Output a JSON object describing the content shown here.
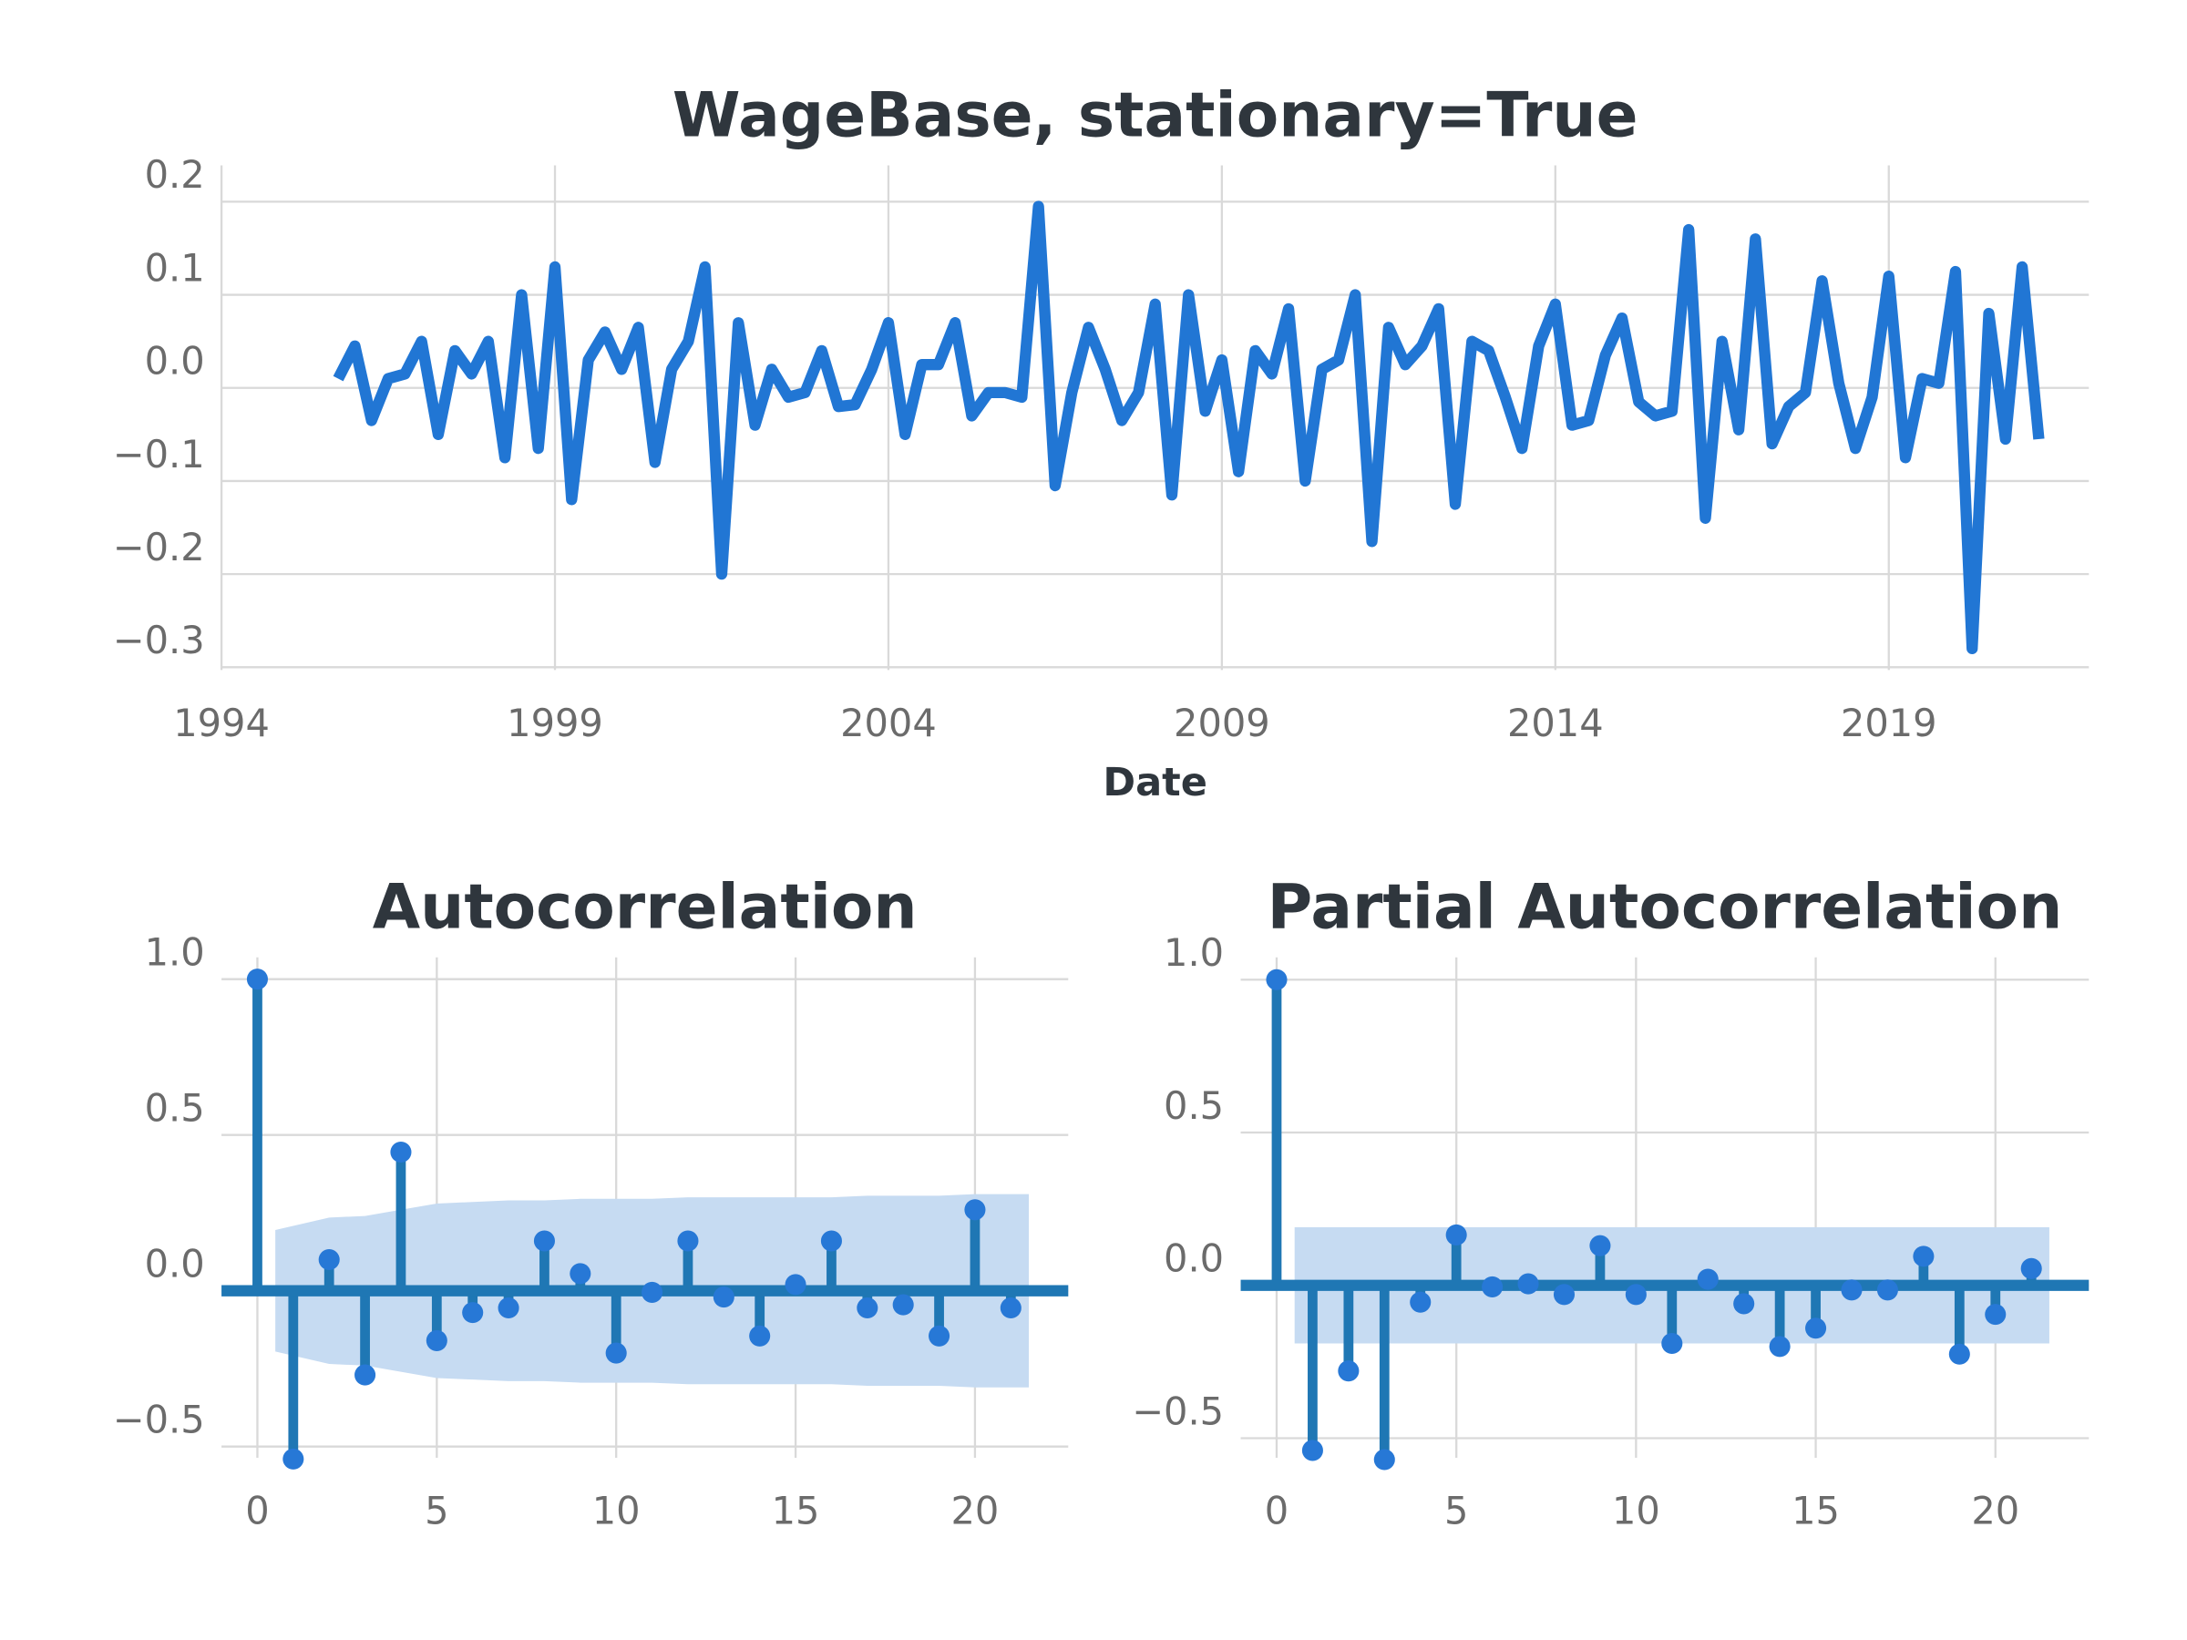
{
  "chart_data": [
    {
      "type": "line",
      "title": "WageBase, stationary=True",
      "xlabel": "Date",
      "x": [
        1995.75,
        1996,
        1996.25,
        1996.5,
        1996.75,
        1997,
        1997.25,
        1997.5,
        1997.75,
        1998,
        1998.25,
        1998.5,
        1998.75,
        1999,
        1999.25,
        1999.5,
        1999.75,
        2000,
        2000.25,
        2000.5,
        2000.75,
        2001,
        2001.25,
        2001.5,
        2001.75,
        2002,
        2002.25,
        2002.5,
        2002.75,
        2003,
        2003.25,
        2003.5,
        2003.75,
        2004,
        2004.25,
        2004.5,
        2004.75,
        2005,
        2005.25,
        2005.5,
        2005.75,
        2006,
        2006.25,
        2006.5,
        2006.75,
        2007,
        2007.25,
        2007.5,
        2007.75,
        2008,
        2008.25,
        2008.5,
        2008.75,
        2009,
        2009.25,
        2009.5,
        2009.75,
        2010,
        2010.25,
        2010.5,
        2010.75,
        2011,
        2011.25,
        2011.5,
        2011.75,
        2012,
        2012.25,
        2012.5,
        2012.75,
        2013,
        2013.25,
        2013.5,
        2013.75,
        2014,
        2014.25,
        2014.5,
        2014.75,
        2015,
        2015.25,
        2015.5,
        2015.75,
        2016,
        2016.25,
        2016.5,
        2016.75,
        2017,
        2017.25,
        2017.5,
        2017.75,
        2018,
        2018.25,
        2018.5,
        2018.75,
        2019,
        2019.25,
        2019.5,
        2019.75,
        2020,
        2020.25,
        2020.5,
        2020.75,
        2021,
        2021.25
      ],
      "values": [
        0.01,
        0.045,
        -0.035,
        0.01,
        0.015,
        0.05,
        -0.05,
        0.04,
        0.015,
        0.05,
        -0.075,
        0.1,
        -0.065,
        0.13,
        -0.12,
        0.03,
        0.06,
        0.02,
        0.065,
        -0.08,
        0.02,
        0.05,
        0.13,
        -0.2,
        0.07,
        -0.04,
        0.02,
        -0.01,
        -0.005,
        0.04,
        -0.02,
        -0.018,
        0.02,
        0.07,
        -0.05,
        0.025,
        0.025,
        0.07,
        -0.03,
        -0.005,
        -0.005,
        -0.01,
        0.195,
        -0.105,
        -0.005,
        0.065,
        0.02,
        -0.035,
        -0.005,
        0.09,
        -0.115,
        0.1,
        -0.025,
        0.03,
        -0.09,
        0.04,
        0.015,
        0.085,
        -0.1,
        0.02,
        0.03,
        0.1,
        -0.165,
        0.065,
        0.025,
        0.045,
        0.085,
        -0.125,
        0.05,
        0.04,
        -0.01,
        -0.065,
        0.045,
        0.09,
        -0.04,
        -0.035,
        0.035,
        0.075,
        -0.015,
        -0.03,
        -0.025,
        0.17,
        -0.14,
        0.05,
        -0.045,
        0.16,
        -0.06,
        -0.02,
        -0.005,
        0.115,
        0.005,
        -0.065,
        -0.01,
        0.12,
        -0.075,
        0.01,
        0.005,
        0.125,
        -0.28,
        0.08,
        -0.055,
        0.13,
        -0.055
      ],
      "color": "#2176d4",
      "xlim": [
        1994,
        2022
      ],
      "xticks": [
        1994,
        1999,
        2004,
        2009,
        2014,
        2019
      ],
      "ylim": [
        -0.303,
        0.239
      ],
      "yticks": [
        0.2,
        0.1,
        {
          "value": 0,
          "label": "0.0"
        },
        {
          "value": -0.1,
          "label": "−0.1"
        },
        {
          "value": -0.2,
          "label": "−0.2"
        },
        {
          "value": -0.3,
          "label": "−0.3"
        }
      ],
      "grid": true
    },
    {
      "type": "stem",
      "title": "Autocorrelation",
      "x": [
        0,
        1,
        2,
        3,
        4,
        5,
        6,
        7,
        8,
        9,
        10,
        11,
        12,
        13,
        14,
        15,
        16,
        17,
        18,
        19,
        20,
        21
      ],
      "values": [
        1,
        -0.54,
        0.1,
        -0.27,
        0.445,
        -0.16,
        -0.07,
        -0.055,
        0.16,
        0.055,
        -0.2,
        -0.005,
        0.16,
        -0.02,
        -0.145,
        0.02,
        0.16,
        -0.055,
        -0.045,
        -0.145,
        0.26,
        -0.055
      ],
      "band": [
        null,
        0.195,
        0.235,
        0.24,
        0.26,
        0.28,
        0.285,
        0.29,
        0.29,
        0.295,
        0.295,
        0.295,
        0.3,
        0.3,
        0.3,
        0.3,
        0.3,
        0.305,
        0.305,
        0.305,
        0.31,
        0.31
      ],
      "color": "#1f77b4",
      "marker_color": "#2778d6",
      "band_color": "#c6dbf2",
      "xlim": [
        -1,
        22.6
      ],
      "xticks": [
        0,
        5,
        10,
        15,
        20
      ],
      "ylim": [
        -0.536,
        1.07
      ],
      "yticks": [
        {
          "value": 1,
          "label": "1.0"
        },
        0.5,
        {
          "value": 0,
          "label": "0.0"
        },
        {
          "value": -0.5,
          "label": "−0.5"
        }
      ],
      "grid": true
    },
    {
      "type": "stem",
      "title": "Partial Autocorrelation",
      "x": [
        0,
        1,
        2,
        3,
        4,
        5,
        6,
        7,
        8,
        9,
        10,
        11,
        12,
        13,
        14,
        15,
        16,
        17,
        18,
        19,
        20,
        21
      ],
      "values": [
        1,
        -0.54,
        -0.28,
        -0.57,
        -0.055,
        0.165,
        -0.005,
        0.005,
        -0.03,
        0.13,
        -0.03,
        -0.19,
        0.02,
        -0.06,
        -0.2,
        -0.14,
        -0.015,
        -0.015,
        0.095,
        -0.225,
        -0.095,
        0.055
      ],
      "band": [
        null,
        0.19,
        0.19,
        0.19,
        0.19,
        0.19,
        0.19,
        0.19,
        0.19,
        0.19,
        0.19,
        0.19,
        0.19,
        0.19,
        0.19,
        0.19,
        0.19,
        0.19,
        0.19,
        0.19,
        0.19,
        0.19
      ],
      "color": "#1f77b4",
      "marker_color": "#2778d6",
      "band_color": "#c6dbf2",
      "xlim": [
        -1,
        22.6
      ],
      "xticks": [
        0,
        5,
        10,
        15,
        20
      ],
      "ylim": [
        -0.564,
        1.073
      ],
      "yticks": [
        {
          "value": 1,
          "label": "1.0"
        },
        0.5,
        {
          "value": 0,
          "label": "0.0"
        },
        {
          "value": -0.5,
          "label": "−0.5"
        }
      ],
      "grid": true
    }
  ]
}
